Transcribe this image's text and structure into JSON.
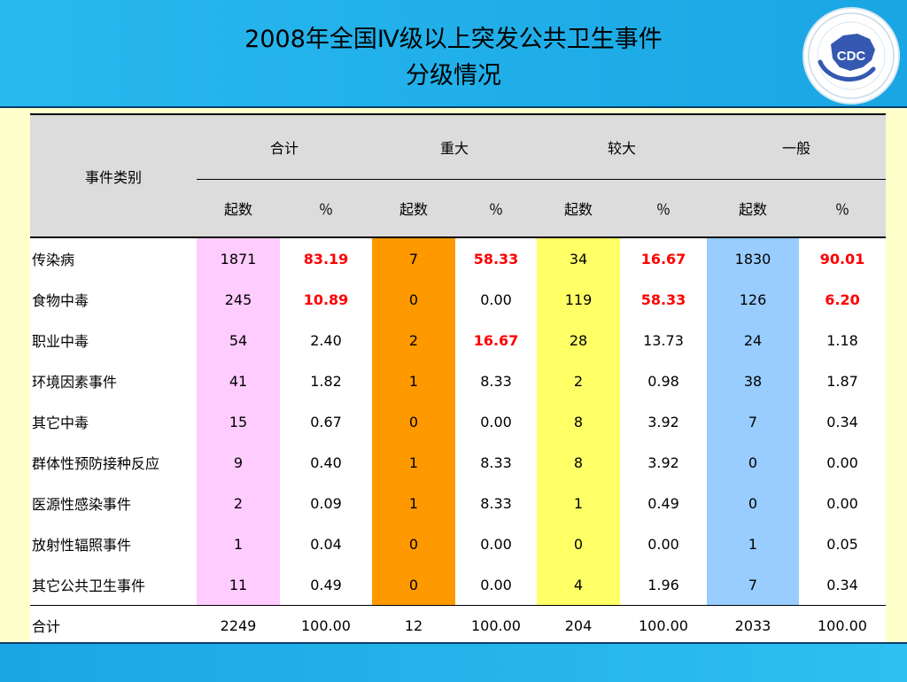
{
  "title": {
    "line1": "2008年全国Ⅳ级以上突发公共卫生事件",
    "line2": "分级情况"
  },
  "logo": {
    "text": "CDC",
    "icon": "china-cdc-logo"
  },
  "colors": {
    "header": "#28b9ee",
    "total_col": "#ffccff",
    "major_col": "#ff9900",
    "larger_col": "#ffff66",
    "general_col": "#99ccff",
    "highlight_text": "#ff0000"
  },
  "table": {
    "category_header": "事件类别",
    "groups": [
      "合计",
      "重大",
      "较大",
      "一般"
    ],
    "subheaders": [
      "起数",
      "％",
      "起数",
      "％",
      "起数",
      "％",
      "起数",
      "％"
    ],
    "rows": [
      {
        "name": "传染病",
        "cells": [
          "1871",
          "83.19",
          "7",
          "58.33",
          "34",
          "16.67",
          "1830",
          "90.01"
        ]
      },
      {
        "name": "食物中毒",
        "cells": [
          "245",
          "10.89",
          "0",
          "0.00",
          "119",
          "58.33",
          "126",
          "6.20"
        ]
      },
      {
        "name": "职业中毒",
        "cells": [
          "54",
          "2.40",
          "2",
          "16.67",
          "28",
          "13.73",
          "24",
          "1.18"
        ]
      },
      {
        "name": "环境因素事件",
        "cells": [
          "41",
          "1.82",
          "1",
          "8.33",
          "2",
          "0.98",
          "38",
          "1.87"
        ]
      },
      {
        "name": "其它中毒",
        "cells": [
          "15",
          "0.67",
          "0",
          "0.00",
          "8",
          "3.92",
          "7",
          "0.34"
        ]
      },
      {
        "name": "群体性预防接种反应",
        "cells": [
          "9",
          "0.40",
          "1",
          "8.33",
          "8",
          "3.92",
          "0",
          "0.00"
        ]
      },
      {
        "name": "医源性感染事件",
        "cells": [
          "2",
          "0.09",
          "1",
          "8.33",
          "1",
          "0.49",
          "0",
          "0.00"
        ]
      },
      {
        "name": "放射性辐照事件",
        "cells": [
          "1",
          "0.04",
          "0",
          "0.00",
          "0",
          "0.00",
          "1",
          "0.05"
        ]
      },
      {
        "name": "其它公共卫生事件",
        "cells": [
          "11",
          "0.49",
          "0",
          "0.00",
          "4",
          "1.96",
          "7",
          "0.34"
        ]
      }
    ],
    "total": {
      "name": "合计",
      "cells": [
        "2249",
        "100.00",
        "12",
        "100.00",
        "204",
        "100.00",
        "2033",
        "100.00"
      ]
    }
  }
}
